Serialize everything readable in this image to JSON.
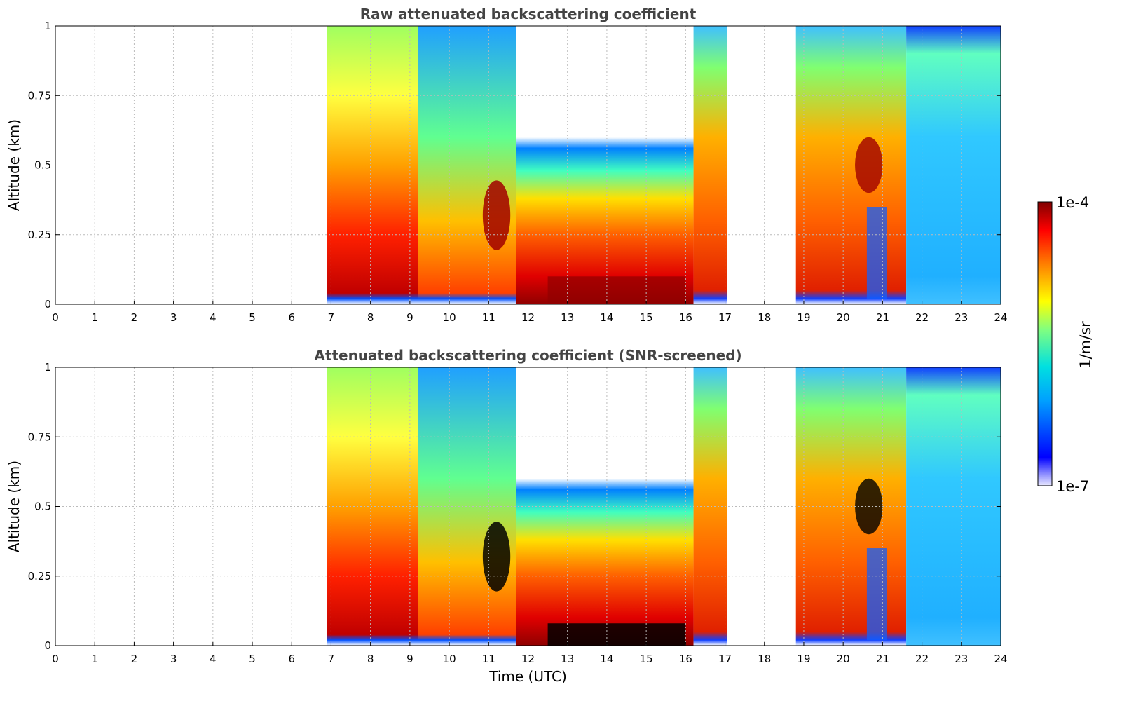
{
  "chart_data": [
    {
      "type": "heatmap",
      "title": "Raw attenuated backscattering coefficient",
      "xlabel": "Time (UTC)",
      "ylabel": "Altitude (km)",
      "xlim": [
        0,
        24
      ],
      "ylim": [
        0,
        1
      ],
      "x_ticks": [
        "0",
        "1",
        "2",
        "3",
        "4",
        "5",
        "6",
        "7",
        "8",
        "9",
        "10",
        "11",
        "12",
        "13",
        "14",
        "15",
        "16",
        "17",
        "18",
        "19",
        "20",
        "21",
        "22",
        "23",
        "24"
      ],
      "y_ticks": [
        "0",
        "0.25",
        "0.5",
        "0.75",
        "1"
      ],
      "grid": true,
      "data_segments": [
        {
          "start": 6.9,
          "end": 17.05
        },
        {
          "start": 18.8,
          "end": 24.0
        }
      ],
      "features": [
        {
          "label": "cloud layer",
          "time": [
            10.9,
            11.6
          ],
          "altitude": [
            0.2,
            0.45
          ],
          "level": "high"
        },
        {
          "label": "cloud layer",
          "time": [
            20.3,
            21.0
          ],
          "altitude": [
            0.4,
            0.6
          ],
          "level": "high"
        },
        {
          "label": "surface layer",
          "time": [
            12.5,
            16.0
          ],
          "altitude": [
            0.0,
            0.15
          ],
          "level": "high"
        }
      ]
    },
    {
      "type": "heatmap",
      "title": "Attenuated backscattering coefficient (SNR-screened)",
      "xlabel": "Time (UTC)",
      "ylabel": "Altitude (km)",
      "xlim": [
        0,
        24
      ],
      "ylim": [
        0,
        1
      ],
      "x_ticks": [
        "0",
        "1",
        "2",
        "3",
        "4",
        "5",
        "6",
        "7",
        "8",
        "9",
        "10",
        "11",
        "12",
        "13",
        "14",
        "15",
        "16",
        "17",
        "18",
        "19",
        "20",
        "21",
        "22",
        "23",
        "24"
      ],
      "y_ticks": [
        "0",
        "0.25",
        "0.5",
        "0.75",
        "1"
      ],
      "grid": true,
      "data_segments": [
        {
          "start": 6.9,
          "end": 17.05
        },
        {
          "start": 18.8,
          "end": 24.0
        }
      ]
    }
  ],
  "colorbar": {
    "label": "1/m/sr",
    "max_label": "1e-4",
    "min_label": "1e-7",
    "scale": "log",
    "colormap": "jet"
  }
}
